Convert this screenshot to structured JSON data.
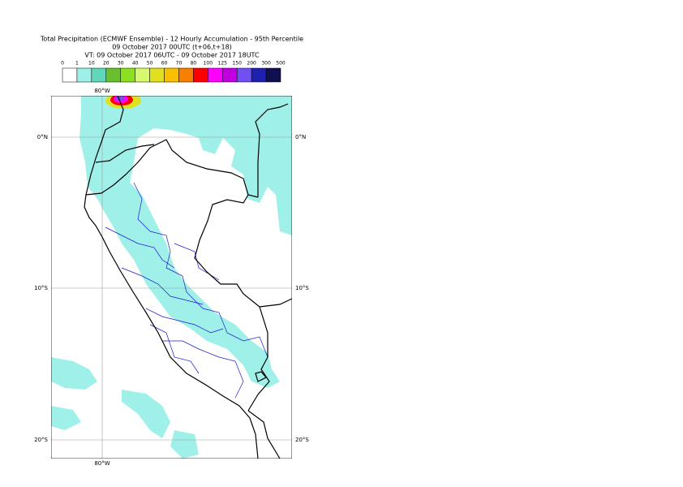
{
  "title": {
    "line1": "Total Precipitation (ECMWF Ensemble) - 12 Hourly Accumulation - 95th Percentile",
    "line2": "09 October 2017 00UTC (t+06,t+18)",
    "line3": "VT: 09 October 2017 06UTC - 09 October 2017 18UTC"
  },
  "colorbar": {
    "labels": [
      0,
      1,
      10,
      20,
      30,
      40,
      50,
      60,
      70,
      80,
      100,
      125,
      150,
      200,
      300,
      500
    ],
    "colors": [
      "#ffffff",
      "#a0f0ea",
      "#5ed8b8",
      "#68c030",
      "#8ce020",
      "#d8f870",
      "#e0e020",
      "#f8c000",
      "#f88000",
      "#ff0000",
      "#ff00ff",
      "#c000e0",
      "#7050f0",
      "#2020b0",
      "#101050"
    ]
  },
  "map": {
    "longitude_labels": [
      "80°W"
    ],
    "latitude_labels": [
      "0°N",
      "10°S",
      "20°S"
    ]
  }
}
